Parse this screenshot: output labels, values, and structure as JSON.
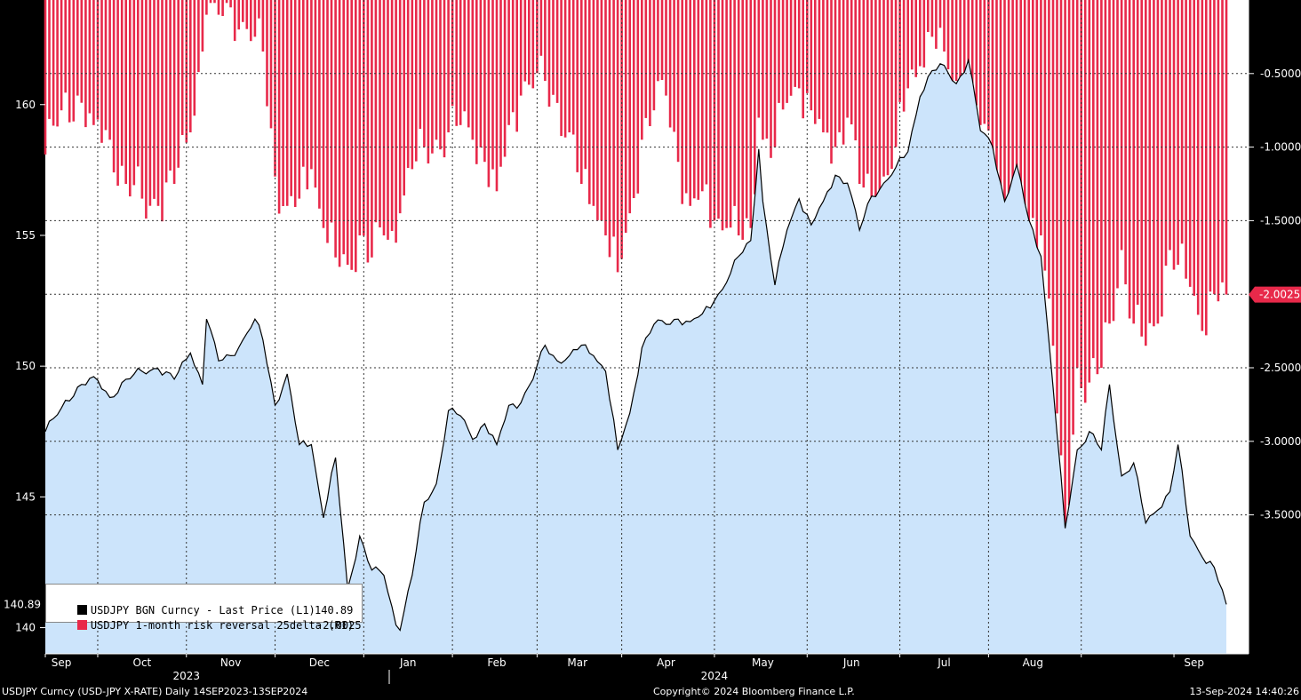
{
  "chart_data": {
    "type": "bar-line-area",
    "left_axis": {
      "ticks": [
        140,
        145,
        150,
        155,
        160
      ],
      "range": [
        139,
        164
      ]
    },
    "right_axis": {
      "ticks": [
        "-0.5000",
        "-1.0000",
        "-1.5000",
        "-2.0000",
        "-2.5000",
        "-3.0000",
        "-3.5000"
      ],
      "tick_values": [
        -0.5,
        -1.0,
        -1.5,
        -2.0,
        -2.5,
        -3.0,
        -3.5
      ],
      "range": [
        -4.0,
        0.0
      ]
    },
    "months": [
      "Sep",
      "Oct",
      "Nov",
      "Dec",
      "Jan",
      "Feb",
      "Mar",
      "Apr",
      "May",
      "Jun",
      "Jul",
      "Aug",
      "Sep"
    ],
    "years": [
      "2023",
      "2024"
    ],
    "series": [
      {
        "name": "USDJPY BGN Curncy - Last Price (L1)",
        "axis": "left",
        "color": "#000000",
        "fill": "#cce4fb",
        "last_value": "140.89",
        "anchors": [
          [
            0,
            147.5
          ],
          [
            4,
            148.4
          ],
          [
            8,
            149.2
          ],
          [
            12,
            149.6
          ],
          [
            16,
            148.8
          ],
          [
            20,
            149.5
          ],
          [
            24,
            149.8
          ],
          [
            28,
            149.9
          ],
          [
            32,
            149.5
          ],
          [
            36,
            150.5
          ],
          [
            39,
            149.3
          ],
          [
            40,
            151.8
          ],
          [
            43,
            150.2
          ],
          [
            46,
            150.4
          ],
          [
            49,
            151.0
          ],
          [
            52,
            151.8
          ],
          [
            54,
            151.0
          ],
          [
            57,
            148.5
          ],
          [
            60,
            149.7
          ],
          [
            63,
            147.0
          ],
          [
            66,
            147.0
          ],
          [
            69,
            144.2
          ],
          [
            72,
            146.5
          ],
          [
            75,
            141.5
          ],
          [
            78,
            143.5
          ],
          [
            81,
            142.2
          ],
          [
            84,
            142.0
          ],
          [
            87,
            140.1
          ],
          [
            88,
            139.9
          ],
          [
            91,
            142.0
          ],
          [
            94,
            144.8
          ],
          [
            97,
            145.5
          ],
          [
            100,
            148.3
          ],
          [
            103,
            148.1
          ],
          [
            106,
            147.2
          ],
          [
            109,
            147.8
          ],
          [
            112,
            147.0
          ],
          [
            115,
            148.5
          ],
          [
            118,
            148.6
          ],
          [
            121,
            149.5
          ],
          [
            124,
            150.8
          ],
          [
            127,
            150.2
          ],
          [
            130,
            150.4
          ],
          [
            133,
            150.8
          ],
          [
            136,
            150.4
          ],
          [
            139,
            149.8
          ],
          [
            142,
            146.8
          ],
          [
            145,
            148.2
          ],
          [
            148,
            150.7
          ],
          [
            151,
            151.6
          ],
          [
            154,
            151.6
          ],
          [
            157,
            151.8
          ],
          [
            160,
            151.7
          ],
          [
            163,
            152.0
          ],
          [
            166,
            152.5
          ],
          [
            169,
            153.2
          ],
          [
            172,
            154.2
          ],
          [
            175,
            154.8
          ],
          [
            177,
            158.3
          ],
          [
            178,
            156.3
          ],
          [
            181,
            153.1
          ],
          [
            184,
            155.2
          ],
          [
            187,
            156.4
          ],
          [
            190,
            155.4
          ],
          [
            193,
            156.3
          ],
          [
            196,
            157.3
          ],
          [
            199,
            157.0
          ],
          [
            202,
            155.2
          ],
          [
            205,
            156.5
          ],
          [
            208,
            157.0
          ],
          [
            211,
            157.6
          ],
          [
            214,
            158.2
          ],
          [
            217,
            160.3
          ],
          [
            220,
            161.3
          ],
          [
            223,
            161.5
          ],
          [
            226,
            160.8
          ],
          [
            229,
            161.7
          ],
          [
            232,
            159.0
          ],
          [
            235,
            158.4
          ],
          [
            238,
            156.3
          ],
          [
            241,
            157.7
          ],
          [
            244,
            155.6
          ],
          [
            247,
            154.2
          ],
          [
            250,
            149.2
          ],
          [
            253,
            143.8
          ],
          [
            256,
            146.8
          ],
          [
            259,
            147.5
          ],
          [
            262,
            146.8
          ],
          [
            264,
            149.3
          ],
          [
            267,
            145.8
          ],
          [
            270,
            146.3
          ],
          [
            273,
            144.0
          ],
          [
            276,
            144.5
          ],
          [
            279,
            145.2
          ],
          [
            281,
            147.0
          ],
          [
            284,
            143.5
          ],
          [
            287,
            142.7
          ],
          [
            290,
            142.3
          ],
          [
            293,
            140.89
          ]
        ]
      },
      {
        "name": "USDJPY 1-month risk reversal 25delta (R1)",
        "axis": "right",
        "color": "#e8294a",
        "last_value": "-2.0025",
        "anchors": [
          [
            0,
            -1.05
          ],
          [
            4,
            -0.75
          ],
          [
            8,
            -0.65
          ],
          [
            12,
            -0.85
          ],
          [
            16,
            -0.95
          ],
          [
            20,
            -1.25
          ],
          [
            24,
            -1.35
          ],
          [
            28,
            -1.4
          ],
          [
            32,
            -1.25
          ],
          [
            36,
            -0.9
          ],
          [
            39,
            -0.35
          ],
          [
            40,
            -0.1
          ],
          [
            43,
            -0.1
          ],
          [
            46,
            -0.05
          ],
          [
            49,
            -0.15
          ],
          [
            52,
            -0.25
          ],
          [
            54,
            -0.35
          ],
          [
            57,
            -1.2
          ],
          [
            60,
            -1.4
          ],
          [
            63,
            -1.35
          ],
          [
            66,
            -1.15
          ],
          [
            69,
            -1.55
          ],
          [
            72,
            -1.75
          ],
          [
            75,
            -1.8
          ],
          [
            78,
            -1.6
          ],
          [
            81,
            -1.75
          ],
          [
            84,
            -1.6
          ],
          [
            87,
            -1.65
          ],
          [
            88,
            -1.45
          ],
          [
            91,
            -1.15
          ],
          [
            94,
            -1.0
          ],
          [
            97,
            -0.95
          ],
          [
            100,
            -0.9
          ],
          [
            103,
            -0.85
          ],
          [
            106,
            -0.95
          ],
          [
            109,
            -1.1
          ],
          [
            112,
            -1.3
          ],
          [
            115,
            -0.85
          ],
          [
            118,
            -0.65
          ],
          [
            121,
            -0.6
          ],
          [
            124,
            -0.55
          ],
          [
            127,
            -0.7
          ],
          [
            130,
            -0.9
          ],
          [
            133,
            -1.25
          ],
          [
            136,
            -1.4
          ],
          [
            139,
            -1.6
          ],
          [
            142,
            -1.85
          ],
          [
            145,
            -1.45
          ],
          [
            148,
            -0.95
          ],
          [
            151,
            -0.75
          ],
          [
            154,
            -0.65
          ],
          [
            157,
            -1.1
          ],
          [
            160,
            -1.4
          ],
          [
            163,
            -1.3
          ],
          [
            166,
            -1.5
          ],
          [
            169,
            -1.55
          ],
          [
            172,
            -1.6
          ],
          [
            175,
            -1.55
          ],
          [
            177,
            -0.8
          ],
          [
            178,
            -0.95
          ],
          [
            181,
            -1.0
          ],
          [
            184,
            -0.7
          ],
          [
            187,
            -0.6
          ],
          [
            190,
            -0.75
          ],
          [
            193,
            -0.9
          ],
          [
            196,
            -1.0
          ],
          [
            199,
            -0.8
          ],
          [
            202,
            -1.25
          ],
          [
            205,
            -1.35
          ],
          [
            208,
            -1.2
          ],
          [
            211,
            -1.0
          ],
          [
            214,
            -0.6
          ],
          [
            217,
            -0.45
          ],
          [
            220,
            -0.25
          ],
          [
            223,
            -0.35
          ],
          [
            226,
            -0.55
          ],
          [
            229,
            -0.65
          ],
          [
            232,
            -0.85
          ],
          [
            235,
            -1.1
          ],
          [
            238,
            -1.45
          ],
          [
            241,
            -1.35
          ],
          [
            244,
            -1.55
          ],
          [
            247,
            -1.6
          ],
          [
            250,
            -2.35
          ],
          [
            253,
            -3.75
          ],
          [
            256,
            -2.5
          ],
          [
            259,
            -2.6
          ],
          [
            262,
            -2.5
          ],
          [
            264,
            -2.2
          ],
          [
            267,
            -1.7
          ],
          [
            270,
            -2.2
          ],
          [
            273,
            -2.35
          ],
          [
            276,
            -2.2
          ],
          [
            279,
            -1.7
          ],
          [
            281,
            -1.8
          ],
          [
            284,
            -1.95
          ],
          [
            287,
            -2.25
          ],
          [
            290,
            -2.0
          ],
          [
            293,
            -2.0025
          ]
        ]
      }
    ]
  },
  "footer": {
    "left": "USDJPY Curncy (USD-JPY X-RATE)  Daily 14SEP2023-13SEP2024",
    "center": "Copyright© 2024 Bloomberg Finance L.P.",
    "right": "13-Sep-2024 14:40:26"
  },
  "legend": {
    "line_label": "USDJPY BGN Curncy - Last Price (L1)",
    "line_value": "140.89",
    "bar_label": "USDJPY 1-month risk reversal 25delta (R1)",
    "bar_value": "-2.0025"
  },
  "colors": {
    "background": "#000000",
    "plot": "#ffffff",
    "area": "#cce4fb",
    "bars": "#e8294a",
    "line": "#000000"
  }
}
